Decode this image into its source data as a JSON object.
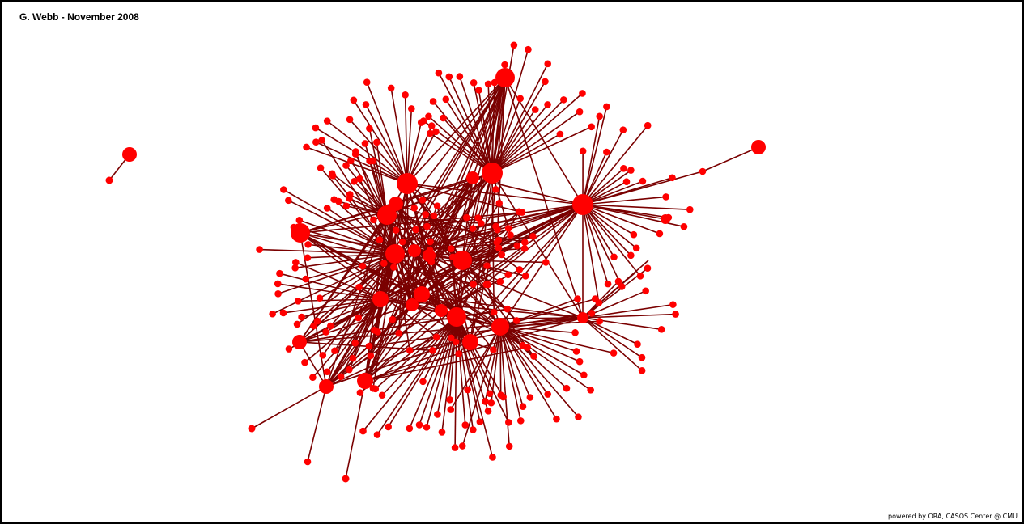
{
  "header": {
    "title": "G. Webb - November 2008"
  },
  "footer": {
    "credit": "powered by ORA, CASOS Center @ CMU"
  },
  "colors": {
    "node": "#ff0000",
    "edge": "#7a0000",
    "border": "#000000",
    "background": "#ffffff"
  }
}
